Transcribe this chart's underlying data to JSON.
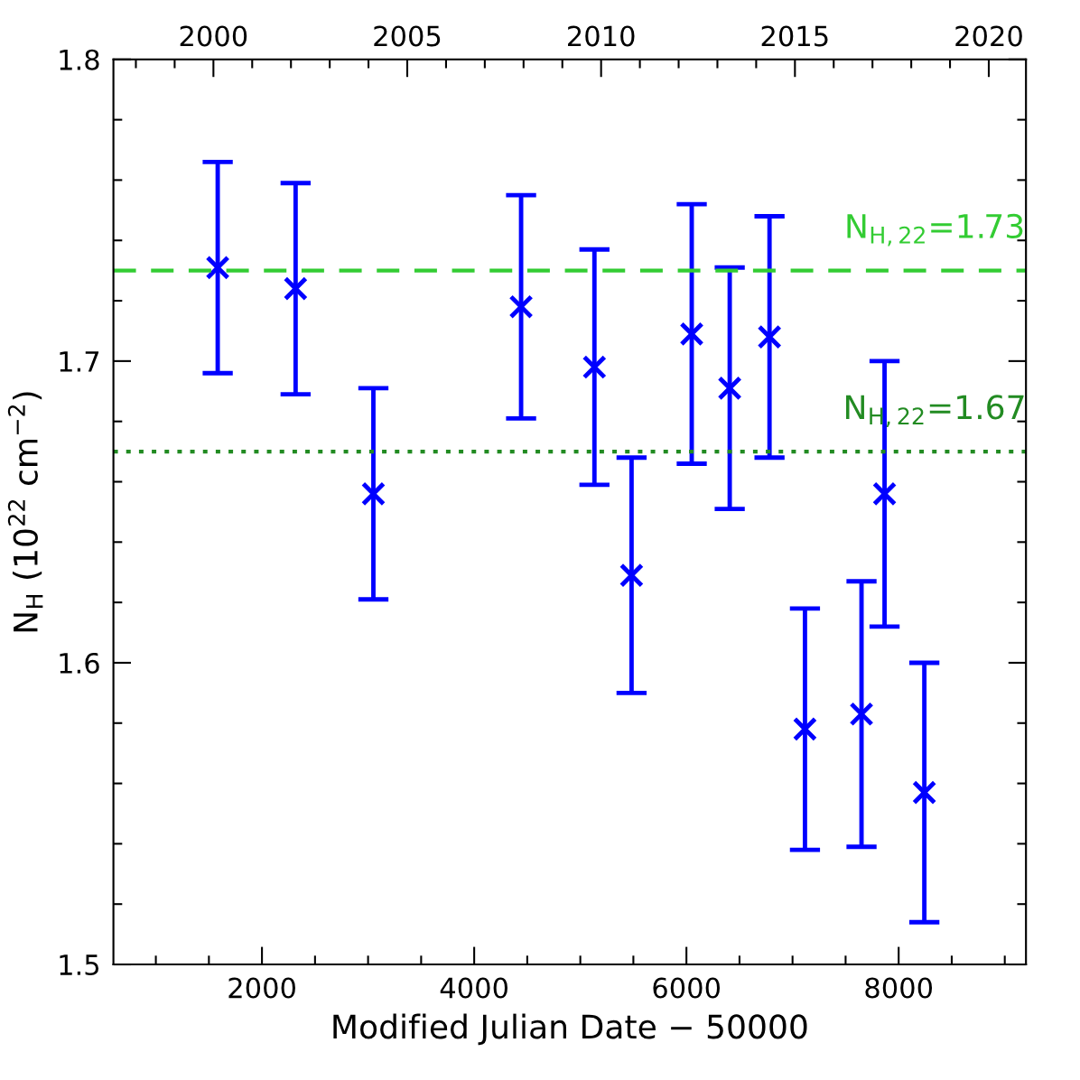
{
  "chart_data": {
    "type": "scatter",
    "xlabel": "Modified Julian Date − 50000",
    "ylabel": "N$_{H}$ (10$^{22}$ cm$^{−2}$)",
    "x2label": null,
    "x": [
      1583,
      2317,
      3050,
      4442,
      5133,
      5483,
      6050,
      6408,
      6783,
      7117,
      7650,
      7867,
      8242
    ],
    "series": [
      {
        "color": "#0000ff",
        "values": [
          1.731,
          1.724,
          1.656,
          1.718,
          1.698,
          1.629,
          1.709,
          1.691,
          1.708,
          1.578,
          1.583,
          1.656,
          1.557
        ],
        "errors": [
          [
            1.696,
            1.766
          ],
          [
            1.689,
            1.759
          ],
          [
            1.621,
            1.691
          ],
          [
            1.681,
            1.755
          ],
          [
            1.659,
            1.737
          ],
          [
            1.59,
            1.668
          ],
          [
            1.666,
            1.752
          ],
          [
            1.651,
            1.731
          ],
          [
            1.668,
            1.748
          ],
          [
            1.538,
            1.618
          ],
          [
            1.539,
            1.627
          ],
          [
            1.612,
            1.7
          ],
          [
            1.514,
            1.6
          ]
        ]
      }
    ],
    "marker": "cross",
    "line_style": "none",
    "grid": false,
    "xlim": [
      600,
      9200
    ],
    "xticks": [
      {
        "value": 1000,
        "label": null
      },
      {
        "value": 1500,
        "label": null
      },
      2000,
      {
        "value": 2500,
        "label": null
      },
      {
        "value": 3000,
        "label": null
      },
      {
        "value": 3500,
        "label": null
      },
      4000,
      {
        "value": 4500,
        "label": null
      },
      {
        "value": 5000,
        "label": null
      },
      {
        "value": 5500,
        "label": null
      },
      6000,
      {
        "value": 6500,
        "label": null
      },
      {
        "value": 7000,
        "label": null
      },
      {
        "value": 7500,
        "label": null
      },
      8000,
      {
        "value": 8500,
        "label": null
      },
      {
        "value": 9000,
        "label": null
      }
    ],
    "x2lim": [
      1997.42,
      2020.96
    ],
    "x2ticks": [
      {
        "value": 1998,
        "label": null
      },
      {
        "value": 1999,
        "label": null
      },
      2000,
      {
        "value": 2001,
        "label": null
      },
      {
        "value": 2002,
        "label": null
      },
      {
        "value": 2003,
        "label": null
      },
      {
        "value": 2004,
        "label": null
      },
      2005,
      {
        "value": 2006,
        "label": null
      },
      {
        "value": 2007,
        "label": null
      },
      {
        "value": 2008,
        "label": null
      },
      {
        "value": 2009,
        "label": null
      },
      2010,
      {
        "value": 2011,
        "label": null
      },
      {
        "value": 2012,
        "label": null
      },
      {
        "value": 2013,
        "label": null
      },
      {
        "value": 2014,
        "label": null
      },
      2015,
      {
        "value": 2016,
        "label": null
      },
      {
        "value": 2017,
        "label": null
      },
      {
        "value": 2018,
        "label": null
      },
      {
        "value": 2019,
        "label": null
      },
      2020
    ],
    "ylim": [
      1.5,
      1.8
    ],
    "yticks": [
      1.5,
      {
        "value": 1.52,
        "label": null
      },
      {
        "value": 1.54,
        "label": null
      },
      {
        "value": 1.56,
        "label": null
      },
      {
        "value": 1.58,
        "label": null
      },
      1.6,
      {
        "value": 1.62,
        "label": null
      },
      {
        "value": 1.64,
        "label": null
      },
      {
        "value": 1.66,
        "label": null
      },
      {
        "value": 1.68,
        "label": null
      },
      1.7,
      {
        "value": 1.72,
        "label": null
      },
      {
        "value": 1.74,
        "label": null
      },
      {
        "value": 1.76,
        "label": null
      },
      {
        "value": 1.78,
        "label": null
      },
      1.8
    ],
    "ref_lines": [
      {
        "axis": "y",
        "value": 1.73,
        "label": "N$_{H,22}$=1.73",
        "color": "#33cc33",
        "line_style": "dashed"
      },
      {
        "axis": "y",
        "value": 1.67,
        "label": "N$_{H,22}$=1.67",
        "color": "#228b22",
        "line_style": "dotted"
      }
    ]
  }
}
